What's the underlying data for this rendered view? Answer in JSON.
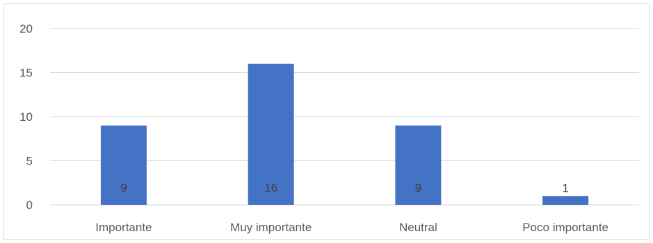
{
  "chart_data": {
    "type": "bar",
    "categories": [
      "Importante",
      "Muy importante",
      "Neutral",
      "Poco importante"
    ],
    "values": [
      9,
      16,
      9,
      1
    ],
    "data_labels": [
      "9",
      "16",
      "9",
      "1"
    ],
    "yticks": [
      0,
      5,
      10,
      15,
      20
    ],
    "ylim": [
      0,
      20
    ],
    "grid": true,
    "legend": "none",
    "colors": {
      "bar": "#4472c4",
      "grid": "#d9d9d9",
      "axis": "#d9d9d9",
      "tick_text": "#595959",
      "label_text": "#404040"
    }
  }
}
